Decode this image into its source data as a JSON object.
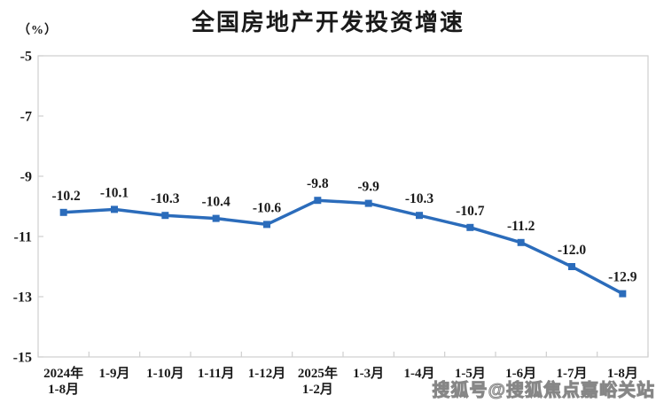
{
  "header": {
    "title": "全国房地产开发投资增速",
    "y_axis_unit": "（%）"
  },
  "watermark": {
    "text": "搜狐号@搜狐焦点嘉峪关站"
  },
  "chart_data": {
    "type": "line",
    "title": "全国房地产开发投资增速",
    "ylabel": "（%）",
    "xlabel": "",
    "categories": [
      "2024年\n1-8月",
      "1-9月",
      "1-10月",
      "1-11月",
      "1-12月",
      "2025年\n1-2月",
      "1-3月",
      "1-4月",
      "1-5月",
      "1-6月",
      "1-7月",
      "1-8月"
    ],
    "values": [
      -10.2,
      -10.1,
      -10.3,
      -10.4,
      -10.6,
      -9.8,
      -9.9,
      -10.3,
      -10.7,
      -11.2,
      -12.0,
      -12.9
    ],
    "data_labels": [
      "-10.2",
      "-10.1",
      "-10.3",
      "-10.4",
      "-10.6",
      "-9.8",
      "-9.9",
      "-10.3",
      "-10.7",
      "-11.2",
      "-12.0",
      "-12.9"
    ],
    "y_ticks": [
      -5,
      -7,
      -9,
      -11,
      -13,
      -15
    ],
    "ylim": [
      -15,
      -5
    ],
    "grid": false,
    "legend": false,
    "line_color": "#2b6cbb",
    "marker": "square",
    "axis_color": "#cfcfcf",
    "text_color": "#1a1a1a"
  }
}
